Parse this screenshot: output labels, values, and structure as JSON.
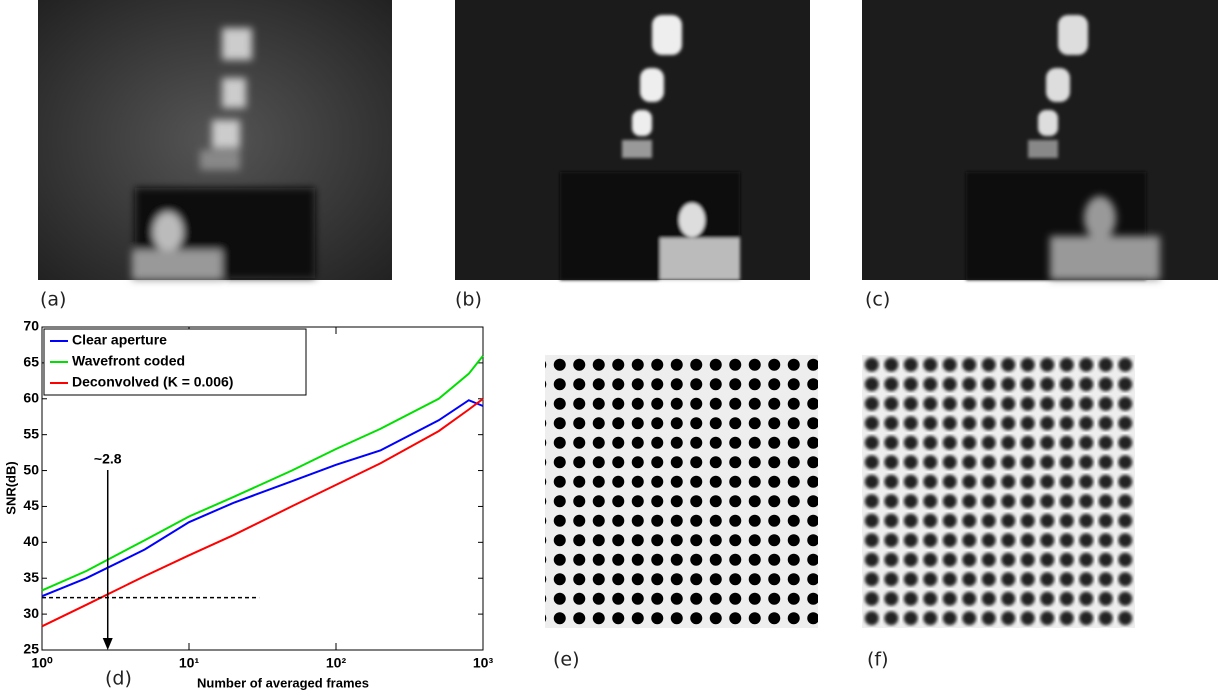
{
  "panels": [
    {
      "label": "(a)"
    },
    {
      "label": "(b)"
    },
    {
      "label": "(c)"
    },
    {
      "label": "(e)"
    },
    {
      "label": "(f)"
    }
  ],
  "chart_data": {
    "type": "line",
    "panel_label": "(d)",
    "xlabel": "Number of averaged frames",
    "ylabel": "SNR(dB)",
    "log_x": true,
    "xlim": [
      1,
      1000
    ],
    "ylim": [
      25,
      70
    ],
    "xticks": [
      {
        "value": 1,
        "label": "10⁰"
      },
      {
        "value": 10,
        "label": "10¹"
      },
      {
        "value": 100,
        "label": "10²"
      },
      {
        "value": 1000,
        "label": "10³"
      }
    ],
    "yticks": [
      25,
      30,
      35,
      40,
      45,
      50,
      55,
      60,
      65,
      70
    ],
    "legend": "upper left",
    "x": [
      1,
      2,
      5,
      10,
      20,
      50,
      100,
      200,
      500,
      800,
      1000
    ],
    "series": [
      {
        "name": "Clear aperture",
        "color": "#0000ff",
        "values": [
          32.5,
          35,
          39,
          42.8,
          45.5,
          48.5,
          50.8,
          52.8,
          57,
          59.8,
          59
        ]
      },
      {
        "name": "Wavefront coded",
        "color": "#00e000",
        "values": [
          33.3,
          36,
          40.3,
          43.6,
          46.3,
          50,
          53,
          55.8,
          60,
          63.5,
          66
        ]
      },
      {
        "name": "Deconvolved (K = 0.006)",
        "color": "#ff0000",
        "values": [
          28.3,
          31.3,
          35.3,
          38.2,
          41,
          45,
          48,
          51,
          55.5,
          58.5,
          60
        ]
      }
    ],
    "annotation": {
      "text": "~2.8",
      "x": 2.8,
      "y": 32.3,
      "line_x": [
        1,
        30
      ]
    }
  }
}
